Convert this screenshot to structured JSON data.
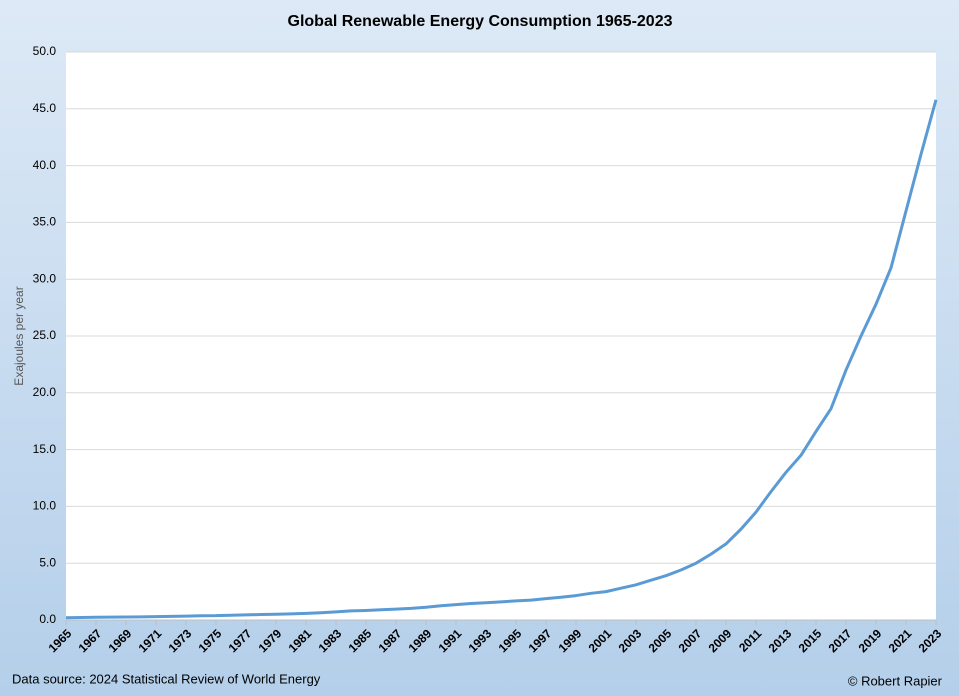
{
  "chart_data": {
    "type": "line",
    "title": "Global Renewable Energy Consumption 1965-2023",
    "y_label": "Exajoules per year",
    "source": "Data source: 2024 Statistical Review of World Energy",
    "credit": "© Robert Rapier",
    "color": "#5b9bd5",
    "grid": true,
    "x": [
      1965,
      1966,
      1967,
      1968,
      1969,
      1970,
      1971,
      1972,
      1973,
      1974,
      1975,
      1976,
      1977,
      1978,
      1979,
      1980,
      1981,
      1982,
      1983,
      1984,
      1985,
      1986,
      1987,
      1988,
      1989,
      1990,
      1991,
      1992,
      1993,
      1994,
      1995,
      1996,
      1997,
      1998,
      1999,
      2000,
      2001,
      2002,
      2003,
      2004,
      2005,
      2006,
      2007,
      2008,
      2009,
      2010,
      2011,
      2012,
      2013,
      2014,
      2015,
      2016,
      2017,
      2018,
      2019,
      2020,
      2021,
      2022,
      2023
    ],
    "values": [
      0.2,
      0.22,
      0.24,
      0.25,
      0.26,
      0.28,
      0.3,
      0.32,
      0.34,
      0.37,
      0.38,
      0.42,
      0.45,
      0.48,
      0.51,
      0.54,
      0.58,
      0.64,
      0.72,
      0.8,
      0.84,
      0.9,
      0.96,
      1.02,
      1.12,
      1.25,
      1.35,
      1.45,
      1.52,
      1.6,
      1.68,
      1.75,
      1.88,
      2.0,
      2.15,
      2.35,
      2.5,
      2.8,
      3.1,
      3.5,
      3.9,
      4.4,
      5.0,
      5.8,
      6.7,
      8.0,
      9.5,
      11.3,
      13.0,
      14.5,
      16.6,
      18.6,
      22.0,
      25.0,
      27.8,
      31.0,
      36.0,
      41.0,
      45.8
    ],
    "xlim": [
      1965,
      2023
    ],
    "xticks": [
      1965,
      1967,
      1969,
      1971,
      1973,
      1975,
      1977,
      1979,
      1981,
      1983,
      1985,
      1987,
      1989,
      1991,
      1993,
      1995,
      1997,
      1999,
      2001,
      2003,
      2005,
      2007,
      2009,
      2011,
      2013,
      2015,
      2017,
      2019,
      2021,
      2023
    ],
    "ylim": [
      0,
      50
    ],
    "yticks": [
      {
        "value": 0,
        "label": "0.0"
      },
      {
        "value": 5,
        "label": "5.0"
      },
      {
        "value": 10,
        "label": "10.0"
      },
      {
        "value": 15,
        "label": "15.0"
      },
      {
        "value": 20,
        "label": "20.0"
      },
      {
        "value": 25,
        "label": "25.0"
      },
      {
        "value": 30,
        "label": "30.0"
      },
      {
        "value": 35,
        "label": "35.0"
      },
      {
        "value": 40,
        "label": "40.0"
      },
      {
        "value": 45,
        "label": "45.0"
      },
      {
        "value": 50,
        "label": "50.0"
      }
    ]
  }
}
